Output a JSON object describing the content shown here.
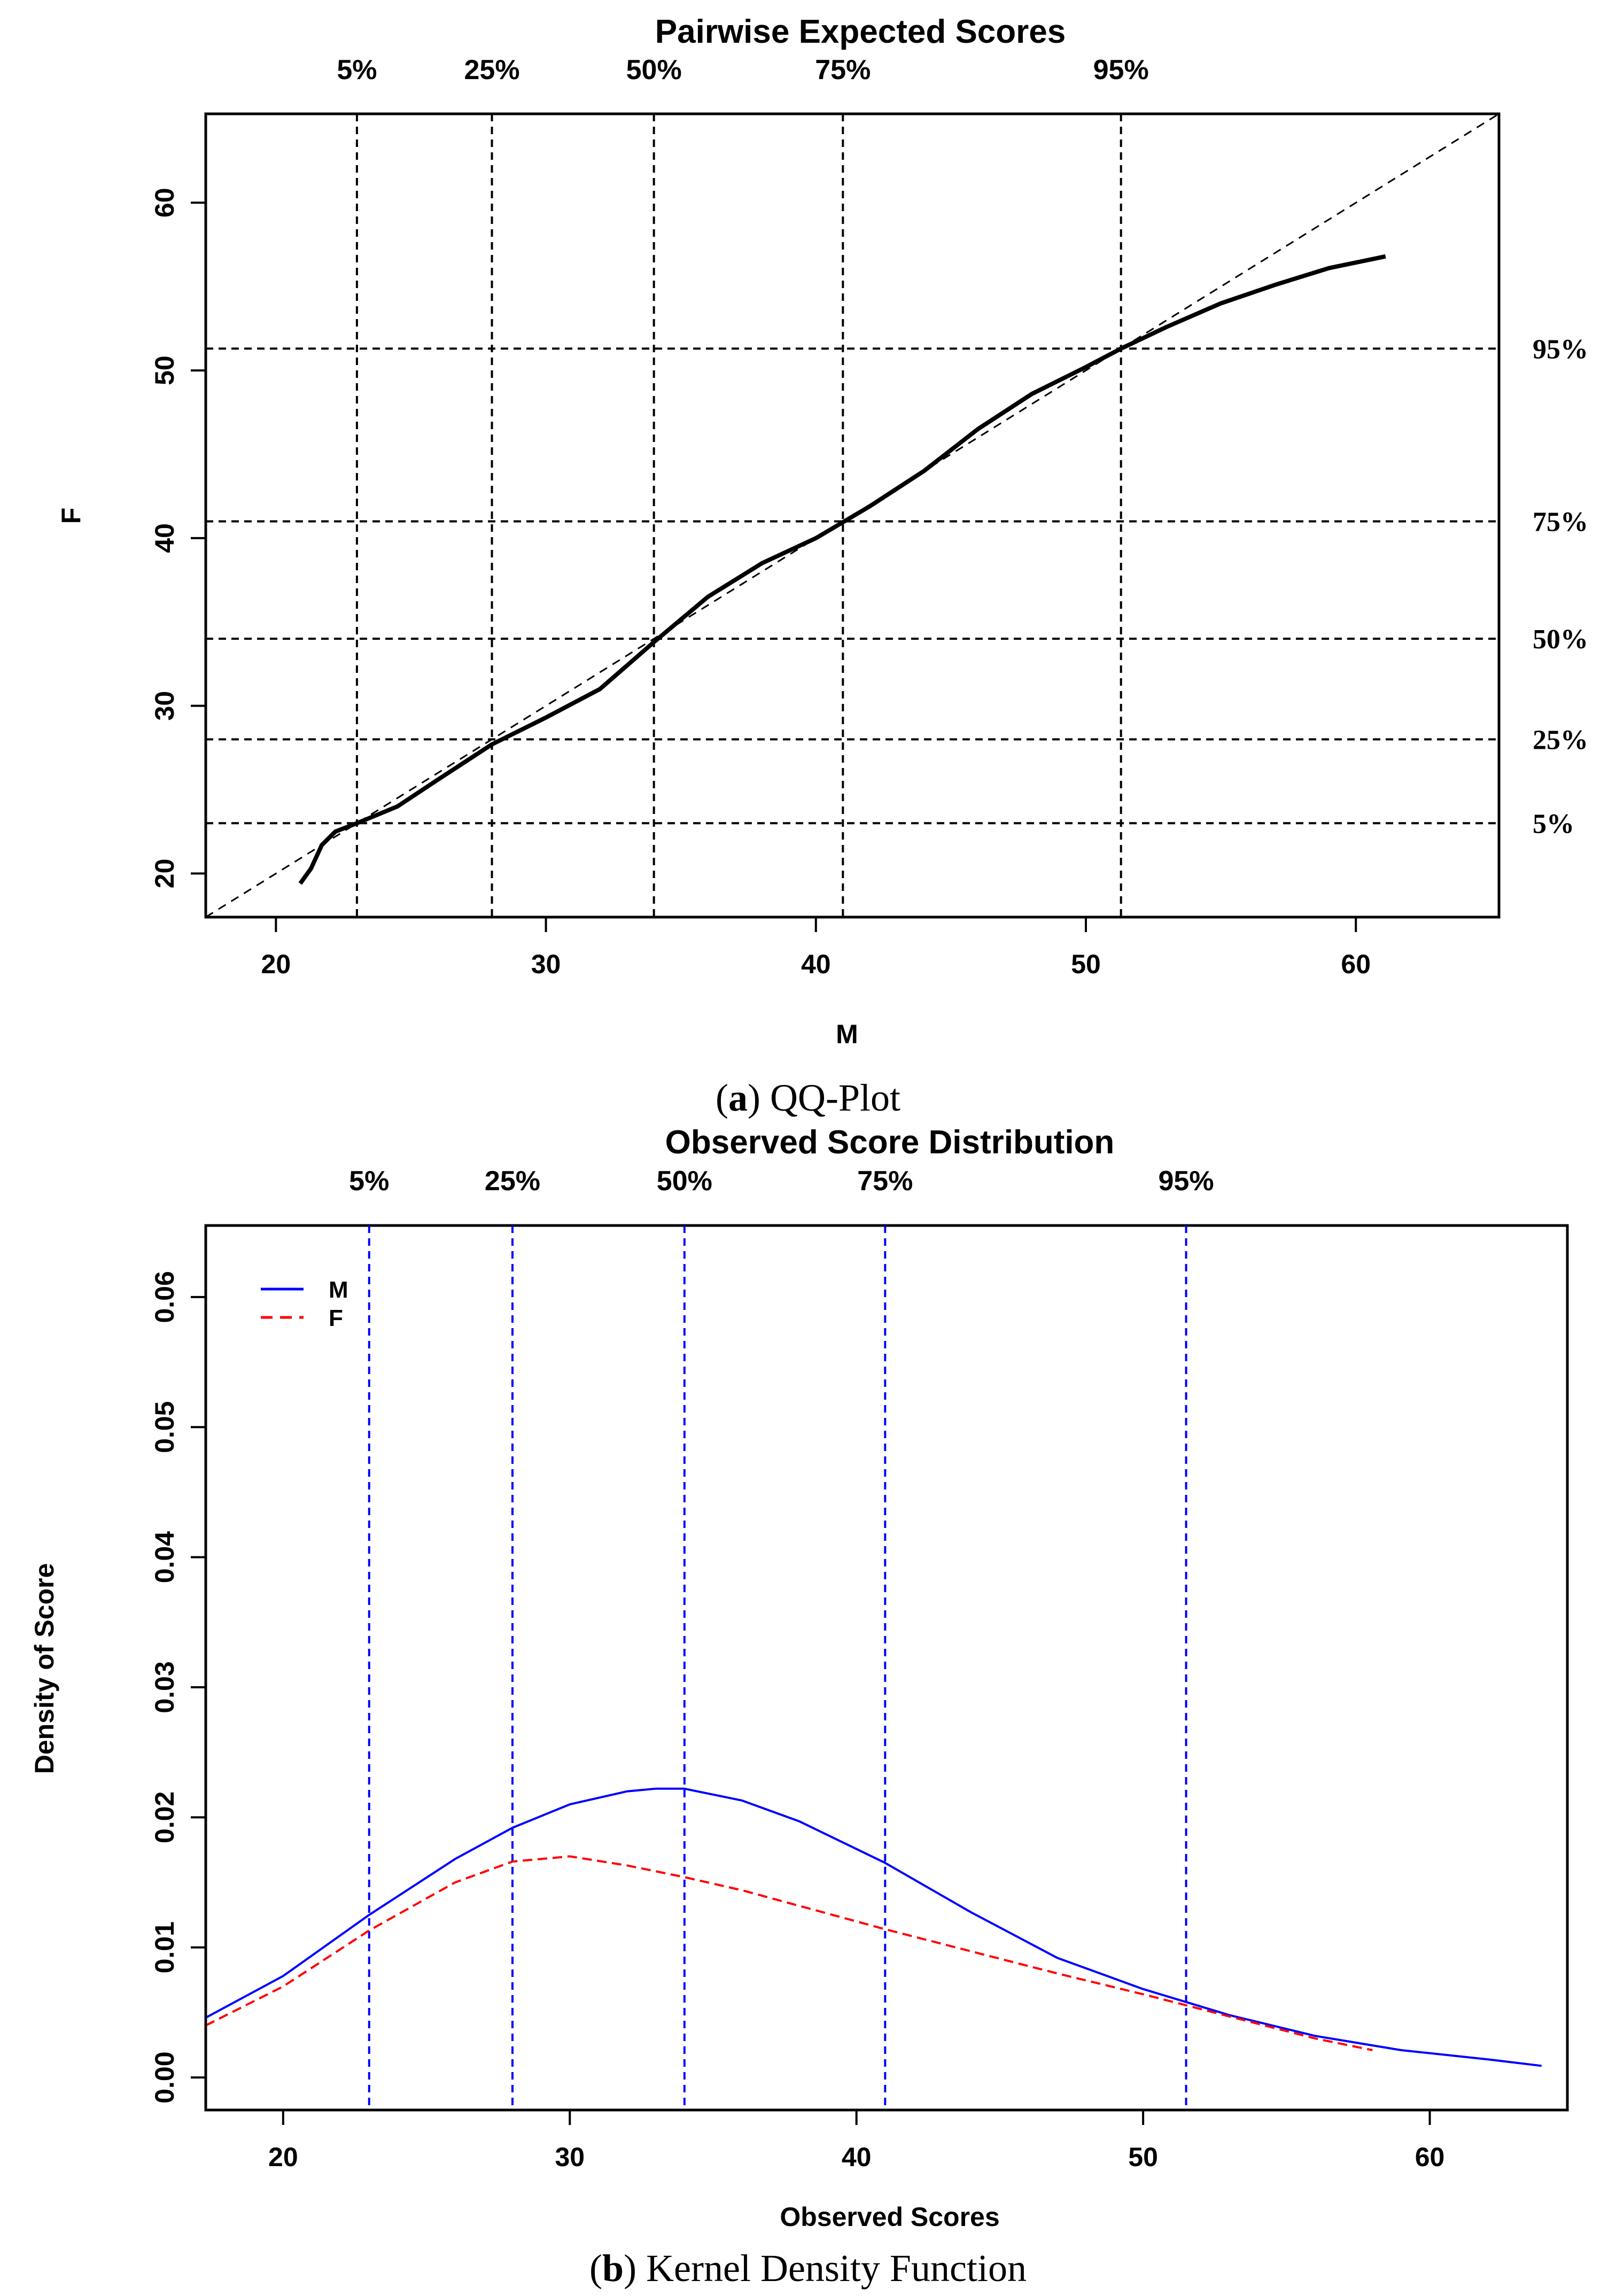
{
  "colors": {
    "qq_line": "#000000",
    "density_m": "#0000ff",
    "density_f": "#ff0000",
    "quantile_lines_b": "#0000ff",
    "quantile_lines_a": "#000000"
  },
  "captions": {
    "a_letter": "a",
    "a_rest": " QQ-Plot",
    "b_letter": "b",
    "b_rest": " Kernel Density Function",
    "open_paren": "(",
    "close_paren": ")"
  },
  "chart_data": [
    {
      "type": "line",
      "title": "Pairwise Expected Scores",
      "xlabel": "M",
      "ylabel": "F",
      "xlim": [
        17.4,
        65.3
      ],
      "ylim": [
        17.4,
        65.3
      ],
      "xticks": [
        20,
        30,
        40,
        50,
        60
      ],
      "yticks": [
        20,
        30,
        40,
        50,
        60
      ],
      "reference_line": "y = x (dashed)",
      "quantiles": [
        {
          "label": "5%",
          "x": 23.0,
          "y": 23.0
        },
        {
          "label": "25%",
          "x": 28.0,
          "y": 28.0
        },
        {
          "label": "50%",
          "x": 34.0,
          "y": 34.0
        },
        {
          "label": "75%",
          "x": 41.0,
          "y": 41.0
        },
        {
          "label": "95%",
          "x": 51.3,
          "y": 51.3
        }
      ],
      "series": [
        {
          "name": "QQ",
          "x": [
            20.9,
            21.3,
            21.7,
            22.2,
            23.0,
            24.5,
            26.0,
            28.0,
            30.0,
            32.0,
            34.0,
            36.0,
            38.0,
            40.0,
            42.0,
            44.0,
            46.0,
            48.0,
            50.0,
            51.3,
            53.0,
            55.0,
            57.0,
            59.0,
            61.1
          ],
          "y": [
            19.4,
            20.3,
            21.7,
            22.5,
            23.0,
            24.0,
            25.6,
            27.7,
            29.3,
            31.0,
            33.8,
            36.5,
            38.5,
            40.0,
            41.9,
            44.0,
            46.5,
            48.6,
            50.2,
            51.3,
            52.6,
            54.0,
            55.1,
            56.1,
            56.8
          ]
        }
      ]
    },
    {
      "type": "line",
      "title": "Observed Score Distribution",
      "xlabel": "Observed Scores",
      "ylabel": "Density of Score",
      "xlim": [
        17.3,
        64.8
      ],
      "ylim": [
        -0.0025,
        0.0655
      ],
      "xticks": [
        20,
        30,
        40,
        50,
        60
      ],
      "yticks": [
        0.0,
        0.01,
        0.02,
        0.03,
        0.04,
        0.05,
        0.06
      ],
      "ytick_labels": [
        "0.00",
        "0.01",
        "0.02",
        "0.03",
        "0.04",
        "0.05",
        "0.06"
      ],
      "legend": {
        "position": "top-left",
        "entries": [
          "M",
          "F"
        ]
      },
      "quantiles": [
        {
          "label": "5%",
          "x": 23.0
        },
        {
          "label": "25%",
          "x": 28.0
        },
        {
          "label": "50%",
          "x": 34.0
        },
        {
          "label": "75%",
          "x": 41.0
        },
        {
          "label": "95%",
          "x": 51.5
        }
      ],
      "series": [
        {
          "name": "M",
          "style": "solid",
          "x": [
            17.3,
            20,
            23,
            26,
            28,
            30,
            32,
            33,
            34,
            36,
            38,
            41,
            44,
            47,
            50,
            53,
            56,
            59,
            62,
            63.9
          ],
          "y": [
            0.0046,
            0.0078,
            0.0125,
            0.0168,
            0.0192,
            0.021,
            0.022,
            0.0222,
            0.0222,
            0.0213,
            0.0197,
            0.0165,
            0.0127,
            0.0092,
            0.0068,
            0.0048,
            0.0032,
            0.0021,
            0.0014,
            0.0009
          ]
        },
        {
          "name": "F",
          "style": "dashed",
          "x": [
            17.3,
            20,
            23,
            26,
            28,
            30,
            32,
            34,
            36,
            38,
            41,
            44,
            47,
            50,
            53,
            56,
            58
          ],
          "y": [
            0.004,
            0.007,
            0.0113,
            0.015,
            0.0166,
            0.017,
            0.0163,
            0.0154,
            0.0144,
            0.0132,
            0.0114,
            0.0097,
            0.008,
            0.0064,
            0.0047,
            0.003,
            0.0021
          ]
        }
      ]
    }
  ]
}
